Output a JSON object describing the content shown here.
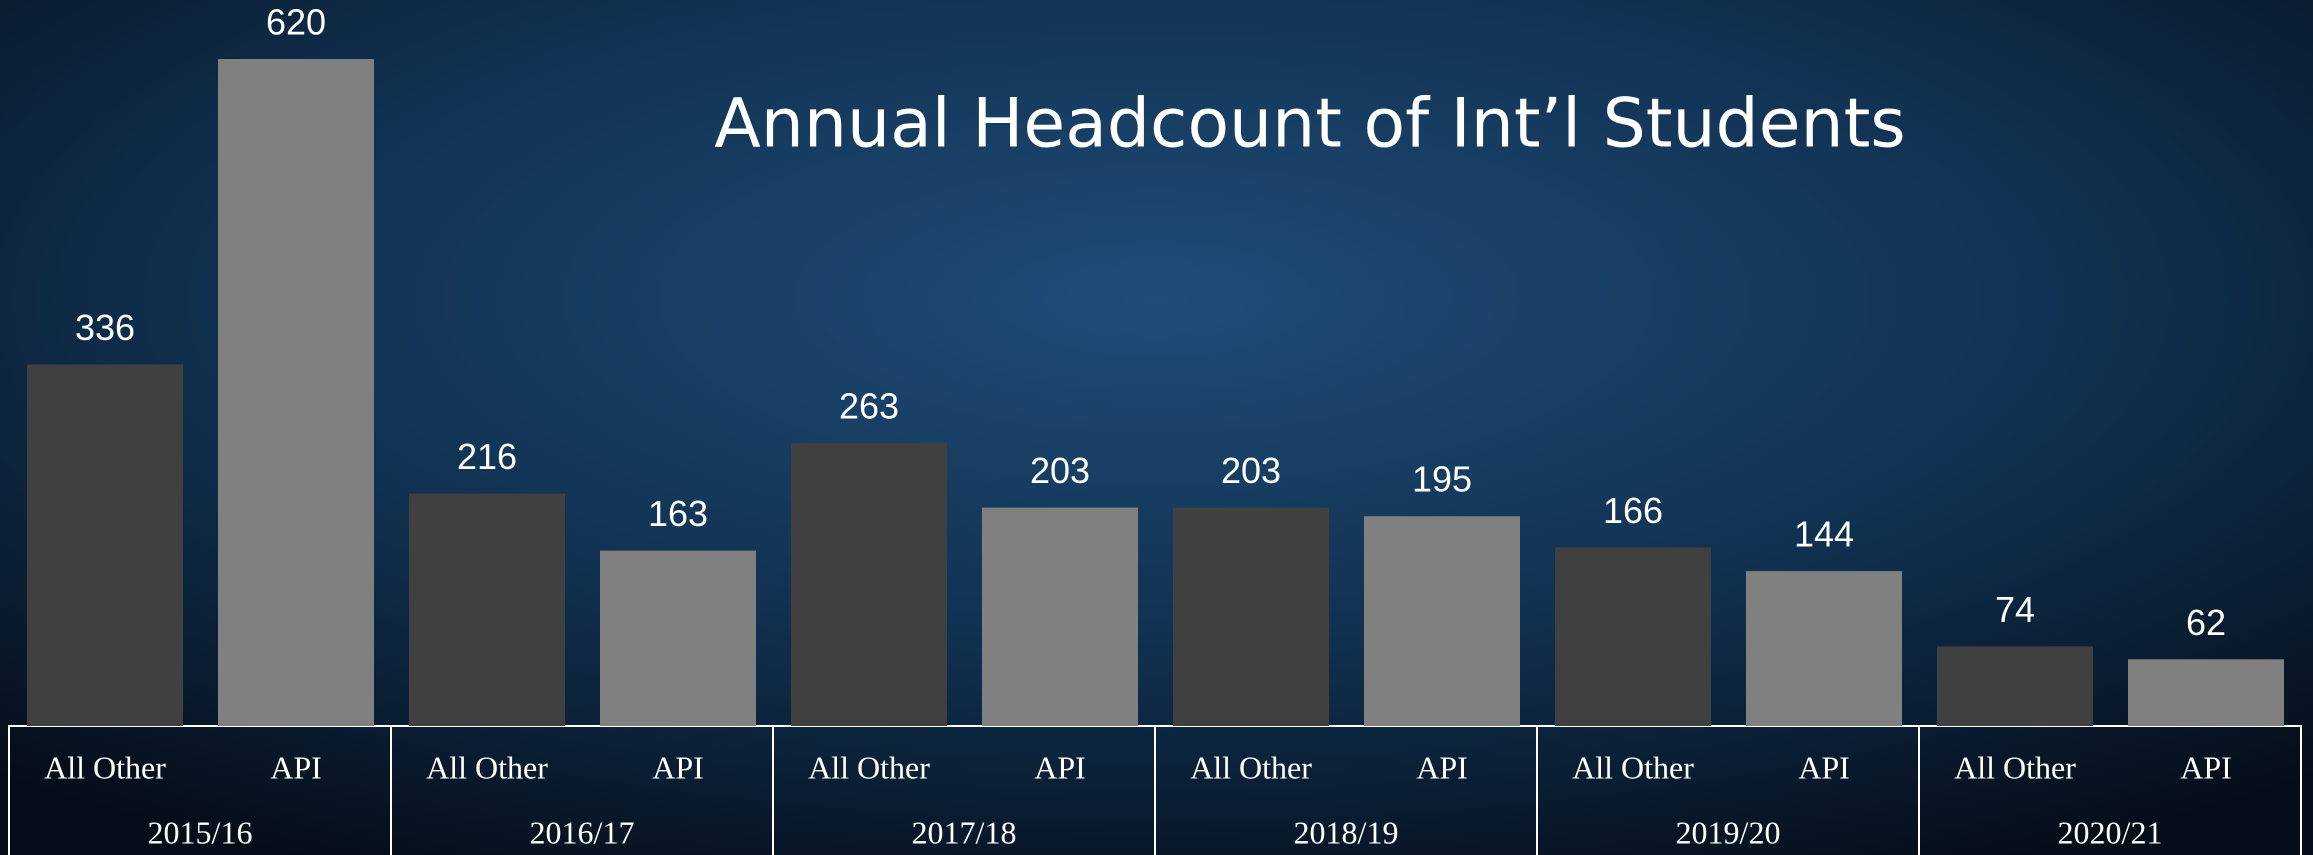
{
  "chart_data": {
    "type": "bar",
    "title": "Annual Headcount of Int’l Students",
    "categories": [
      "2015/16",
      "2016/17",
      "2017/18",
      "2018/19",
      "2019/20",
      "2020/21"
    ],
    "series": [
      {
        "name": "All Other",
        "color": "#404040",
        "values": [
          336,
          216,
          263,
          203,
          166,
          74
        ]
      },
      {
        "name": "API",
        "color": "#808080",
        "values": [
          620,
          163,
          203,
          195,
          144,
          62
        ]
      }
    ]
  }
}
